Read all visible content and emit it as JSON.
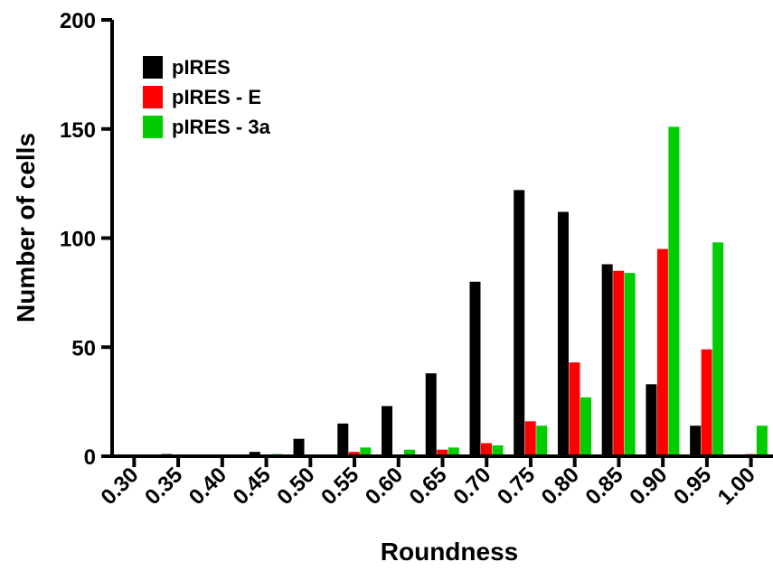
{
  "chart_data": {
    "type": "bar",
    "xlabel": "Roundness",
    "ylabel": "Number of cells",
    "ylim": [
      0,
      200
    ],
    "yticks": [
      0,
      50,
      100,
      150,
      200
    ],
    "categories": [
      "0.30",
      "0.35",
      "0.40",
      "0.45",
      "0.50",
      "0.55",
      "0.60",
      "0.65",
      "0.70",
      "0.75",
      "0.80",
      "0.85",
      "0.90",
      "0.95",
      "1.00"
    ],
    "legend_position": "top-left",
    "grid": false,
    "series": [
      {
        "name": "pIRES",
        "color": "#000000",
        "values": [
          0,
          1,
          0,
          2,
          8,
          15,
          23,
          38,
          80,
          122,
          112,
          88,
          33,
          14,
          0
        ]
      },
      {
        "name": "pIRES - E",
        "color": "#ff0000",
        "values": [
          0,
          0,
          0,
          0,
          0,
          2,
          0,
          3,
          6,
          16,
          43,
          85,
          95,
          49,
          1
        ]
      },
      {
        "name": "pIRES - 3a",
        "color": "#00cc00",
        "values": [
          0,
          0,
          0,
          1,
          0,
          4,
          3,
          4,
          5,
          14,
          27,
          84,
          151,
          98,
          14
        ]
      }
    ]
  }
}
